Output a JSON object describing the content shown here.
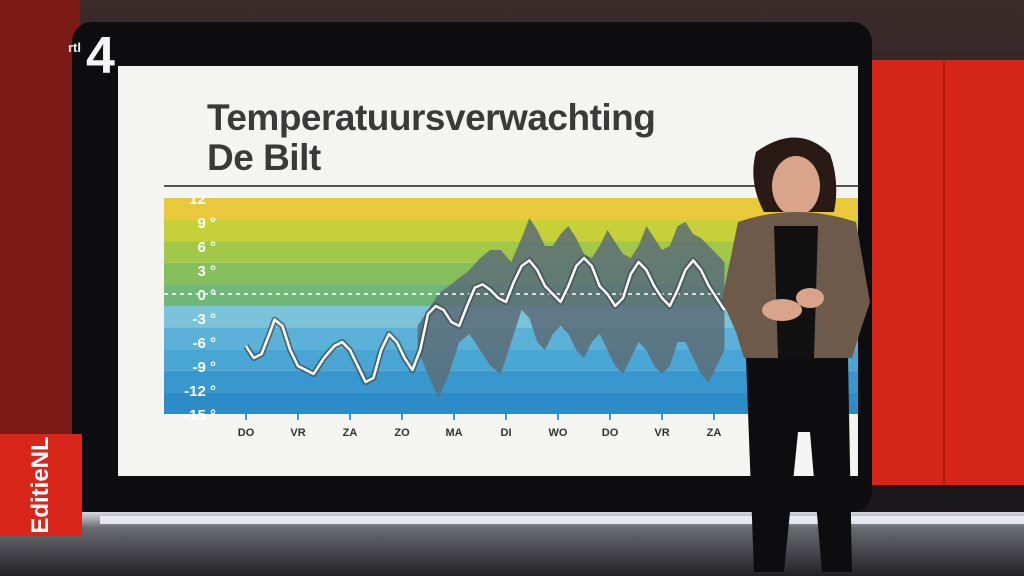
{
  "channel_logo": {
    "rtl": "rtl",
    "number": "4"
  },
  "program_badge": "EditieNL",
  "screen": {
    "title_line1": "Temperatuursverwachting",
    "title_line2": "De Bilt"
  },
  "chart_data": {
    "type": "line",
    "title": "Temperatuursverwachting De Bilt",
    "xlabel": "",
    "ylabel": "",
    "x_ticks": [
      "DO",
      "VR",
      "ZA",
      "ZO",
      "MA",
      "DI",
      "WO",
      "DO",
      "VR",
      "ZA"
    ],
    "y_ticks": [
      "12 °",
      "9 °",
      "6 °",
      "3 °",
      "0 °",
      "-3 °",
      "-6 °",
      "-9 °",
      "-12 °",
      "-15 °"
    ],
    "y_tick_values": [
      12,
      9,
      6,
      3,
      0,
      -3,
      -6,
      -9,
      -12,
      -15
    ],
    "ylim": [
      -15,
      12
    ],
    "xlim": [
      0,
      9.6
    ],
    "zero_line": "dashed",
    "series": [
      {
        "role": "expected",
        "x": [
          0,
          0.15,
          0.3,
          0.45,
          0.55,
          0.7,
          0.85,
          1.0,
          1.15,
          1.3,
          1.5,
          1.7,
          1.85,
          2.0,
          2.15,
          2.3,
          2.45,
          2.6,
          2.75,
          2.9,
          3.05,
          3.2,
          3.35,
          3.5,
          3.65,
          3.8,
          3.95,
          4.1,
          4.25,
          4.4,
          4.55,
          4.7,
          4.85,
          5.0,
          5.15,
          5.3,
          5.45,
          5.6,
          5.75,
          5.9,
          6.05,
          6.2,
          6.35,
          6.5,
          6.65,
          6.8,
          6.95,
          7.1,
          7.25,
          7.4,
          7.55,
          7.7,
          7.85,
          8.0,
          8.15,
          8.3,
          8.45,
          8.6,
          8.75,
          8.9,
          9.05,
          9.2
        ],
        "y": [
          -6.5,
          -8,
          -7.5,
          -5,
          -3.2,
          -4,
          -7,
          -9,
          -9.5,
          -10,
          -8,
          -6.5,
          -6,
          -7,
          -9,
          -11,
          -10.5,
          -7,
          -5,
          -6,
          -8,
          -9.5,
          -7,
          -2.5,
          -1.5,
          -2,
          -3.5,
          -4,
          -1.5,
          0.8,
          1.2,
          0.5,
          -0.5,
          -1,
          1.5,
          3.5,
          4.2,
          3,
          1,
          0,
          -1,
          1,
          3.5,
          4.5,
          3.5,
          1,
          0,
          -1.5,
          -0.5,
          2.5,
          4,
          3,
          1,
          -0.5,
          -1.5,
          0.5,
          3,
          4.2,
          3,
          1,
          -0.5,
          -2
        ]
      },
      {
        "role": "spread_upper",
        "x": [
          3.3,
          3.5,
          3.7,
          3.9,
          4.1,
          4.3,
          4.5,
          4.7,
          4.9,
          5.1,
          5.3,
          5.45,
          5.6,
          5.75,
          5.9,
          6.05,
          6.2,
          6.35,
          6.5,
          6.65,
          6.8,
          6.95,
          7.1,
          7.25,
          7.4,
          7.55,
          7.7,
          7.85,
          8.0,
          8.15,
          8.3,
          8.45,
          8.6,
          8.75,
          8.9,
          9.05,
          9.2
        ],
        "y": [
          -4,
          -2,
          0,
          1,
          2,
          3,
          4.5,
          5.5,
          5.5,
          4,
          7,
          9.5,
          8,
          6,
          6,
          7.5,
          8.5,
          7,
          5,
          4.5,
          6,
          8,
          6.5,
          5,
          4.5,
          6,
          8.5,
          7,
          5.5,
          6,
          8.5,
          9,
          7.5,
          7,
          6,
          5,
          4
        ]
      },
      {
        "role": "spread_lower",
        "x": [
          3.3,
          3.5,
          3.7,
          3.9,
          4.1,
          4.3,
          4.5,
          4.7,
          4.9,
          5.1,
          5.3,
          5.45,
          5.6,
          5.75,
          5.9,
          6.05,
          6.2,
          6.35,
          6.5,
          6.65,
          6.8,
          6.95,
          7.1,
          7.25,
          7.4,
          7.55,
          7.7,
          7.85,
          8.0,
          8.15,
          8.3,
          8.45,
          8.6,
          8.75,
          8.9,
          9.05,
          9.2
        ],
        "y": [
          -7,
          -10,
          -13,
          -10,
          -6,
          -5,
          -7,
          -9,
          -10,
          -6,
          -2,
          -3,
          -6,
          -7,
          -5,
          -4,
          -5,
          -7,
          -8,
          -6,
          -5,
          -7,
          -9,
          -10,
          -8,
          -6,
          -7,
          -9,
          -10,
          -9,
          -6,
          -6,
          -8,
          -10,
          -11,
          -9,
          -7
        ]
      }
    ],
    "colors": {
      "expected_line": "#ffffff",
      "spread_band": "#5a6d77",
      "title_text": "#3a3a3a",
      "bands_warm_to_cold": [
        "#e9c93b",
        "#c6d13a",
        "#a2c84a",
        "#85c05c",
        "#6fb87a",
        "#7ac3da",
        "#5cb1d8",
        "#48a5d4",
        "#3797ce",
        "#2b8cc8"
      ]
    }
  }
}
